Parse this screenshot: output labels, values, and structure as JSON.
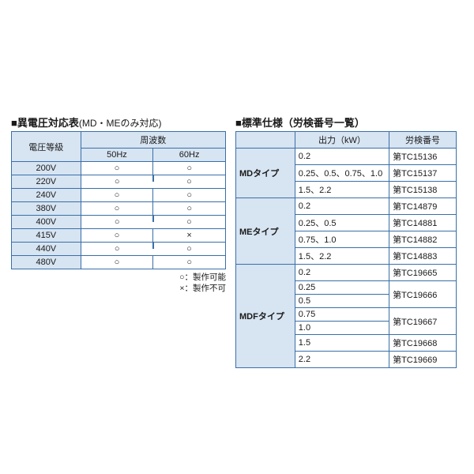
{
  "colors": {
    "border": "#3a6fa8",
    "header_bg": "#d7e4f2",
    "page_bg": "#ffffff",
    "text": "#1a1a1a"
  },
  "left": {
    "title_prefix": "■",
    "title": "異電圧対応表",
    "subtitle": "(MD・MEのみ対応)",
    "header_voltage": "電圧等級",
    "header_freq": "周波数",
    "header_50": "50Hz",
    "header_60": "60Hz",
    "rows": [
      {
        "v": "200V",
        "f50": "○",
        "f60": "○",
        "split": "full"
      },
      {
        "v": "220V",
        "f50": "○",
        "f60": "○",
        "split": "merge_below"
      },
      {
        "v": "240V",
        "f50": "○",
        "f60": "○",
        "split": "full"
      },
      {
        "v": "380V",
        "f50": "○",
        "f60": "○",
        "split": "full"
      },
      {
        "v": "400V",
        "f50": "○",
        "f60": "○",
        "split": "merge_above"
      },
      {
        "v": "415V",
        "f50": "○",
        "f60": "×",
        "split": "full"
      },
      {
        "v": "440V",
        "f50": "○",
        "f60": "○",
        "split": "merge_above"
      },
      {
        "v": "480V",
        "f50": "○",
        "f60": "○",
        "split": "full"
      }
    ],
    "legend_ok": "○：製作可能",
    "legend_ng": "×：製作不可"
  },
  "right": {
    "title_prefix": "■",
    "title": "標準仕様（労検番号一覧）",
    "header_type_blank": "",
    "header_output": "出力（kW）",
    "header_cert": "労検番号",
    "groups": [
      {
        "type": "MDタイプ",
        "rows": [
          {
            "out": "0.2",
            "cert": "第TC15136"
          },
          {
            "out": "0.25、0.5、0.75、1.0",
            "cert": "第TC15137"
          },
          {
            "out": "1.5、2.2",
            "cert": "第TC15138"
          }
        ]
      },
      {
        "type": "MEタイプ",
        "rows": [
          {
            "out": "0.2",
            "cert": "第TC14879"
          },
          {
            "out": "0.25、0.5",
            "cert": "第TC14881"
          },
          {
            "out": "0.75、1.0",
            "cert": "第TC14882"
          },
          {
            "out": "1.5、2.2",
            "cert": "第TC14883"
          }
        ]
      },
      {
        "type": "MDFタイプ",
        "rows": [
          {
            "out": "0.2",
            "cert": "第TC19665"
          },
          {
            "out": "0.25",
            "cert": "第TC19666",
            "cert_rowspan": 2
          },
          {
            "out": "0.5"
          },
          {
            "out": "0.75",
            "cert": "第TC19667",
            "cert_rowspan": 2
          },
          {
            "out": "1.0"
          },
          {
            "out": "1.5",
            "cert": "第TC19668"
          },
          {
            "out": "2.2",
            "cert": "第TC19669"
          }
        ]
      }
    ]
  }
}
